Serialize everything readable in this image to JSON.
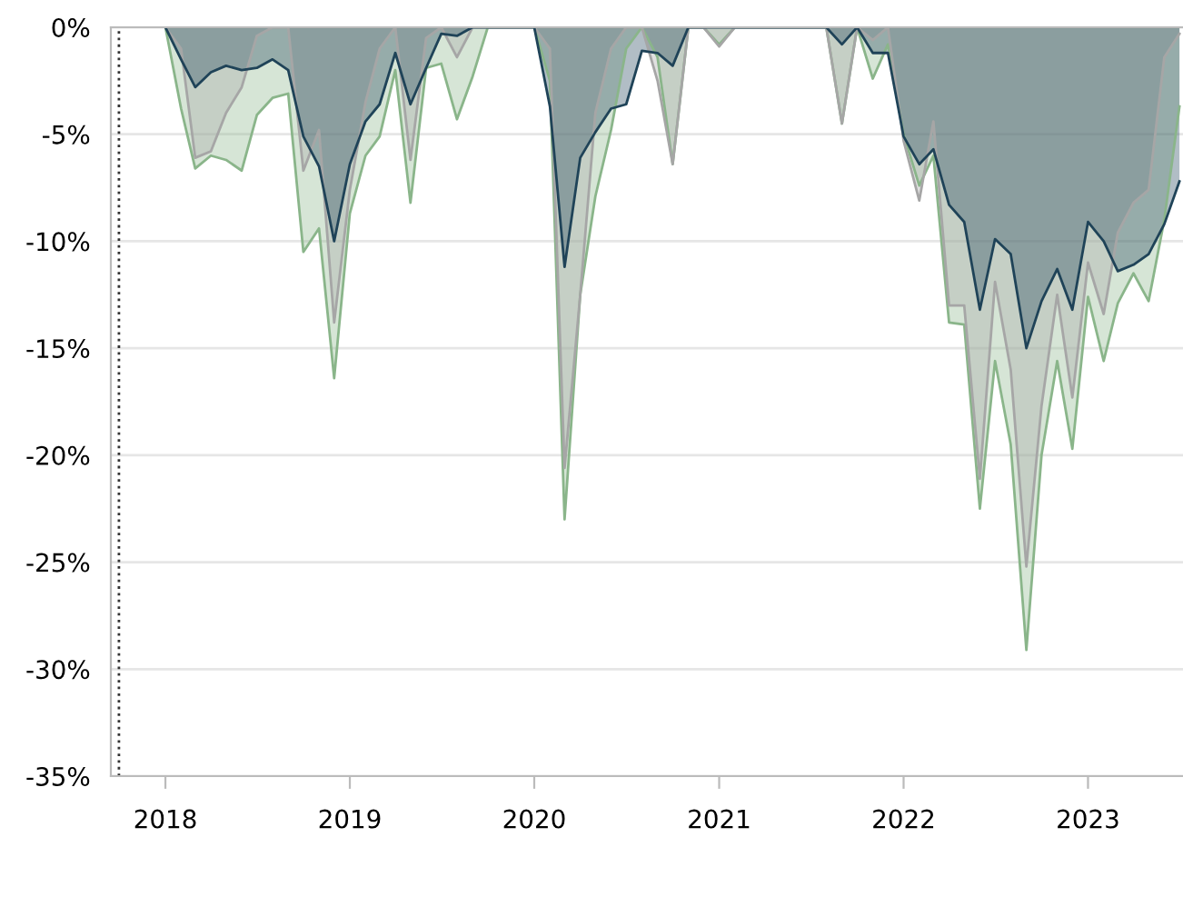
{
  "chart_data": {
    "type": "area",
    "x": [
      "2018-01",
      "2018-02",
      "2018-03",
      "2018-04",
      "2018-05",
      "2018-06",
      "2018-07",
      "2018-08",
      "2018-09",
      "2018-10",
      "2018-11",
      "2018-12",
      "2019-01",
      "2019-02",
      "2019-03",
      "2019-04",
      "2019-05",
      "2019-06",
      "2019-07",
      "2019-08",
      "2019-09",
      "2019-10",
      "2019-11",
      "2019-12",
      "2020-01",
      "2020-02",
      "2020-03",
      "2020-04",
      "2020-05",
      "2020-06",
      "2020-07",
      "2020-08",
      "2020-09",
      "2020-10",
      "2020-11",
      "2020-12",
      "2021-01",
      "2021-02",
      "2021-03",
      "2021-04",
      "2021-05",
      "2021-06",
      "2021-07",
      "2021-08",
      "2021-09",
      "2021-10",
      "2021-11",
      "2021-12",
      "2022-01",
      "2022-02",
      "2022-03",
      "2022-04",
      "2022-05",
      "2022-06",
      "2022-07",
      "2022-08",
      "2022-09",
      "2022-10",
      "2022-11",
      "2022-12",
      "2023-01",
      "2023-02",
      "2023-03",
      "2023-04",
      "2023-05",
      "2023-06",
      "2023-07"
    ],
    "series": [
      {
        "color": "#8ab58a",
        "values": [
          0,
          -3.8,
          -6.6,
          -6.0,
          -6.2,
          -6.7,
          -4.1,
          -3.3,
          -3.1,
          -10.5,
          -9.4,
          -16.4,
          -8.7,
          -6.0,
          -5.1,
          -2.0,
          -8.2,
          -1.9,
          -1.7,
          -4.3,
          -2.3,
          0,
          0,
          0,
          0,
          -2.5,
          -23.0,
          -12.5,
          -7.9,
          -4.8,
          -1.0,
          0,
          -1.4,
          -6.4,
          0,
          0,
          -0.8,
          0,
          0,
          0,
          0,
          0,
          0,
          0,
          -4.5,
          0,
          -2.4,
          -0.8,
          -5.0,
          -7.4,
          -6.0,
          -13.8,
          -13.9,
          -22.5,
          -15.6,
          -19.5,
          -29.1,
          -20.0,
          -15.6,
          -19.7,
          -12.6,
          -15.6,
          -12.9,
          -11.5,
          -12.8,
          -9.0,
          -3.7
        ]
      },
      {
        "color": "#a6a6a6",
        "values": [
          0,
          -1.0,
          -6.1,
          -5.8,
          -4.0,
          -2.8,
          -0.4,
          0,
          0,
          -6.7,
          -4.8,
          -13.8,
          -7.6,
          -3.5,
          -1.0,
          0,
          -6.2,
          -0.5,
          0,
          -1.4,
          0,
          0,
          0,
          0,
          0,
          -1.0,
          -20.6,
          -12.5,
          -4.0,
          -1.0,
          0,
          0,
          -2.5,
          -6.4,
          0,
          0,
          -0.9,
          0,
          0,
          0,
          0,
          0,
          0,
          0,
          -4.5,
          0,
          -0.6,
          0,
          -5.3,
          -8.1,
          -4.4,
          -13.0,
          -13.0,
          -21.1,
          -11.9,
          -16.0,
          -25.2,
          -17.7,
          -12.5,
          -17.3,
          -11.0,
          -13.4,
          -9.6,
          -8.2,
          -7.6,
          -1.4,
          -0.3
        ]
      },
      {
        "color": "#1f4358",
        "values": [
          0,
          -1.5,
          -2.8,
          -2.1,
          -1.8,
          -2.0,
          -1.9,
          -1.5,
          -2.0,
          -5.1,
          -6.5,
          -10.0,
          -6.4,
          -4.4,
          -3.6,
          -1.2,
          -3.6,
          -1.9,
          -0.3,
          -0.4,
          0,
          0,
          0,
          0,
          0,
          -3.7,
          -11.2,
          -6.1,
          -4.9,
          -3.8,
          -3.6,
          -1.1,
          -1.2,
          -1.8,
          0,
          0,
          0,
          0,
          0,
          0,
          0,
          0,
          0,
          0,
          -0.8,
          0,
          -1.2,
          -1.2,
          -5.1,
          -6.4,
          -5.7,
          -8.3,
          -9.1,
          -13.2,
          -9.9,
          -10.6,
          -15.0,
          -12.8,
          -11.3,
          -13.2,
          -9.1,
          -10.0,
          -11.4,
          -11.1,
          -10.6,
          -9.2,
          -7.2
        ]
      }
    ],
    "xlim": [
      "2017-09-15",
      "2023-07-08"
    ],
    "xticks": [
      {
        "value": "2018-01-01",
        "label": "2018"
      },
      {
        "value": "2019-01-01",
        "label": "2019"
      },
      {
        "value": "2020-01-01",
        "label": "2020"
      },
      {
        "value": "2021-01-01",
        "label": "2021"
      },
      {
        "value": "2022-01-01",
        "label": "2022"
      },
      {
        "value": "2023-01-01",
        "label": "2023"
      }
    ],
    "ylim": [
      -35,
      0
    ],
    "yticks": [
      {
        "value": -35,
        "label": "-35%"
      },
      {
        "value": -30,
        "label": "-30%"
      },
      {
        "value": -25,
        "label": "-25%"
      },
      {
        "value": -20,
        "label": "-20%"
      },
      {
        "value": -15,
        "label": "-15%"
      },
      {
        "value": -10,
        "label": "-10%"
      },
      {
        "value": -5,
        "label": "-5%"
      },
      {
        "value": 0,
        "label": "0%"
      }
    ],
    "ref_lines": [
      {
        "axis": "x",
        "value": "2017-10-01",
        "color": "#333333",
        "line_style": "dotted"
      }
    ],
    "grid": "y"
  }
}
